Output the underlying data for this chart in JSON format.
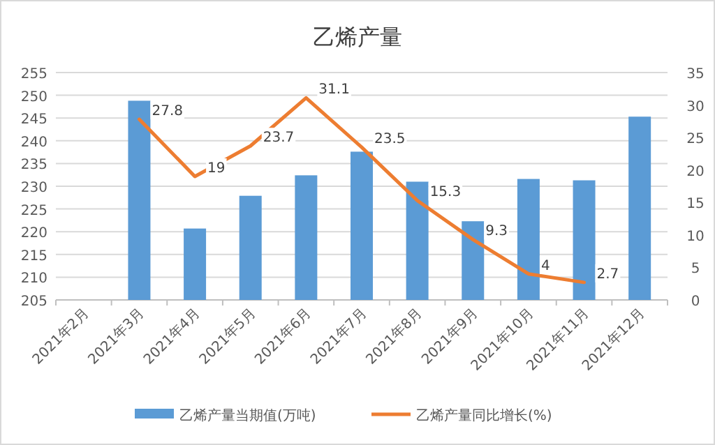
{
  "chart_data": {
    "type": "bar",
    "title": "乙烯产量",
    "categories": [
      "2021年2月",
      "2021年3月",
      "2021年4月",
      "2021年5月",
      "2021年6月",
      "2021年7月",
      "2021年8月",
      "2021年9月",
      "2021年10月",
      "2021年11月",
      "2021年12月"
    ],
    "series": [
      {
        "name": "乙烯产量当期值(万吨)",
        "color": "#5b9bd5",
        "values": [
          null,
          248.8,
          220.7,
          227.9,
          232.4,
          237.6,
          231.0,
          222.3,
          231.6,
          231.3,
          245.3
        ]
      },
      {
        "name": "乙烯产量同比增长(%)",
        "type": "line",
        "axis": "y2",
        "color": "#ed7d31",
        "values": [
          null,
          27.8,
          19,
          23.7,
          31.1,
          23.5,
          15.3,
          9.3,
          4,
          2.7,
          null
        ],
        "value_labels": [
          null,
          "27.8",
          "19",
          "23.7",
          "31.1",
          "23.5",
          "15.3",
          "9.3",
          "4",
          "2.7",
          null
        ]
      }
    ],
    "ylim": [
      205,
      255
    ],
    "yticks": [
      205,
      210,
      215,
      220,
      225,
      230,
      235,
      240,
      245,
      250,
      255
    ],
    "y2lim": [
      0,
      35
    ],
    "y2ticks": [
      0,
      5,
      10,
      15,
      20,
      25,
      30,
      35
    ],
    "grid": "y",
    "legend": "bottom"
  }
}
